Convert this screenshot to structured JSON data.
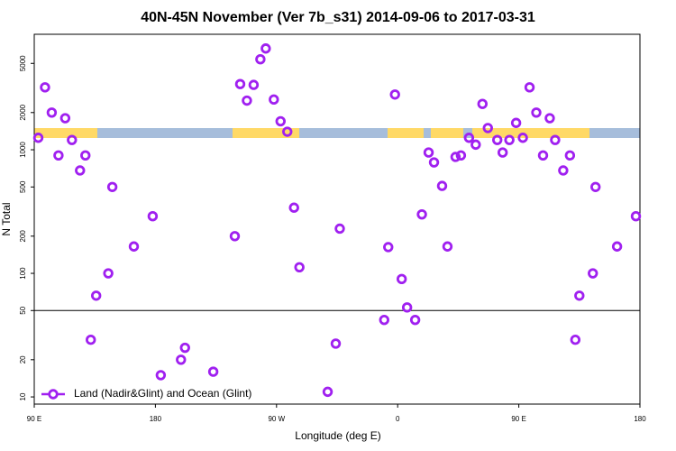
{
  "chart_data": {
    "type": "scatter",
    "title": "40N-45N November (Ver 7b_s31)   2014-09-06 to 2017-03-31",
    "x_label": "Longitude (deg E)",
    "y_label": "N Total",
    "log_y": true,
    "xlim": [
      90,
      540
    ],
    "ylim": [
      8.75,
      8600
    ],
    "xticks": [
      {
        "value": 90,
        "label": "90 E"
      },
      180,
      {
        "value": 270,
        "label": "90 W"
      },
      {
        "value": 360,
        "label": "0"
      },
      {
        "value": 450,
        "label": "90 E"
      },
      {
        "value": 540,
        "label": "180"
      }
    ],
    "yticks": [
      10,
      20,
      50,
      100,
      200,
      500,
      1000,
      2000,
      5000
    ],
    "reference_line": 50,
    "legend": "bottom-left",
    "series": [
      {
        "name": "Land (Nadir&Glint) and Ocean (Glint)",
        "color": "#a020f0",
        "x": [
          93,
          98,
          103,
          108,
          113,
          118,
          124,
          128,
          132,
          136,
          145,
          148,
          164,
          178,
          184,
          199,
          202,
          223,
          239,
          243,
          248,
          253,
          258,
          262,
          268,
          273,
          278,
          283,
          287,
          308,
          314,
          317,
          350,
          353,
          358,
          363,
          367,
          373,
          378,
          383,
          387,
          393,
          397,
          403,
          407,
          413,
          418,
          423,
          427,
          434,
          438,
          443,
          448,
          453,
          458,
          463,
          468,
          473,
          477,
          483,
          488,
          492,
          495,
          505,
          507,
          523,
          537
        ],
        "values": [
          1250,
          3200,
          2000,
          900,
          1800,
          1200,
          680,
          900,
          29,
          66,
          100,
          500,
          165,
          290,
          15,
          20,
          25,
          16,
          200,
          3400,
          2500,
          3350,
          5400,
          6600,
          2550,
          1700,
          1400,
          340,
          112,
          11,
          27,
          230,
          42,
          163,
          2800,
          90,
          53,
          42,
          300,
          950,
          790,
          510,
          165,
          875,
          900,
          1250,
          1100,
          2350,
          1500,
          1200,
          950,
          1200,
          1650,
          1250,
          3200,
          2000,
          900,
          1800,
          1200,
          680,
          900,
          29,
          66,
          100,
          500,
          165,
          290
        ]
      }
    ]
  }
}
